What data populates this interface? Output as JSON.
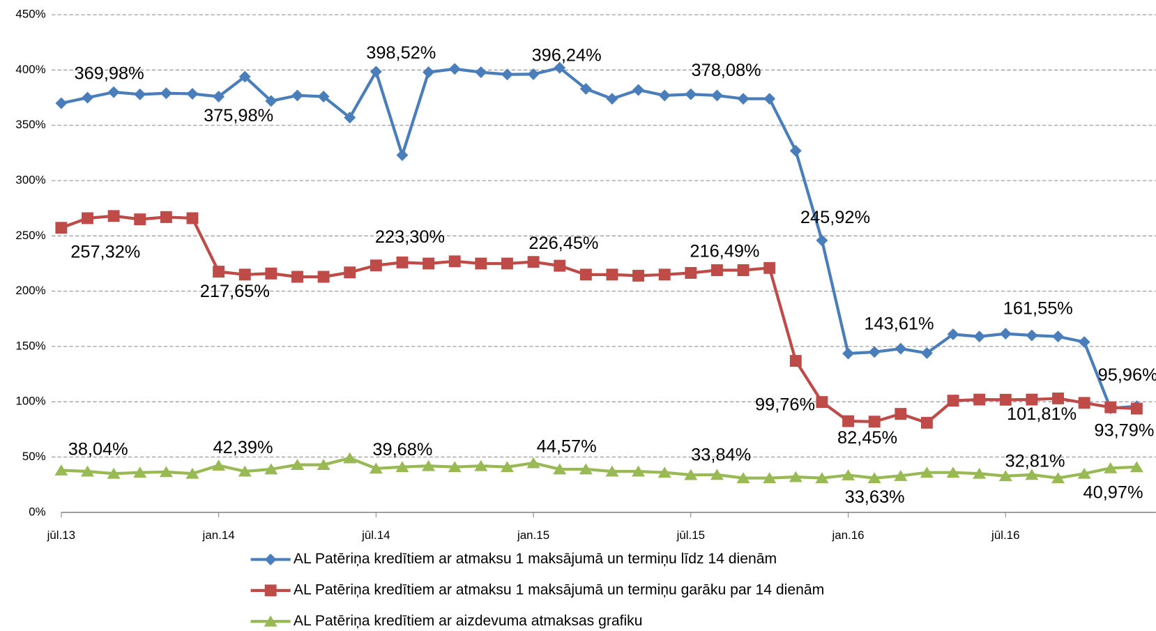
{
  "chart_data": {
    "type": "line",
    "categories": [
      "jūl.13",
      null,
      null,
      null,
      null,
      null,
      "jan.14",
      null,
      null,
      null,
      null,
      null,
      "jūl.14",
      null,
      null,
      null,
      null,
      null,
      "jan.15",
      null,
      null,
      null,
      null,
      null,
      "jūl.15",
      null,
      null,
      null,
      null,
      null,
      "jan.16",
      null,
      null,
      null,
      null,
      null,
      "jūl.16",
      null,
      null,
      null,
      null,
      null
    ],
    "ylim": [
      0,
      450
    ],
    "yticks": [
      {
        "value": 0,
        "label": "0%"
      },
      {
        "value": 50,
        "label": "50%"
      },
      {
        "value": 100,
        "label": "100%"
      },
      {
        "value": 150,
        "label": "150%"
      },
      {
        "value": 200,
        "label": "200%"
      },
      {
        "value": 250,
        "label": "250%"
      },
      {
        "value": 300,
        "label": "300%"
      },
      {
        "value": 350,
        "label": "350%"
      },
      {
        "value": 400,
        "label": "400%"
      },
      {
        "value": 450,
        "label": "450%"
      }
    ],
    "grid": true,
    "legend": "bottom",
    "series": [
      {
        "name": "AL Patēriņa kredītiem ar atmaksu 1 maksājumā un termiņu līdz 14 dienām",
        "color": "#4a7ebb",
        "marker": "diamond",
        "values": [
          369.98,
          375,
          380,
          378,
          379,
          378.5,
          375.98,
          394,
          372,
          377,
          376,
          357,
          398.52,
          323,
          398,
          401,
          398,
          396,
          396.24,
          402,
          383,
          374,
          382,
          377,
          378.08,
          377,
          374,
          374,
          327,
          245.92,
          143.61,
          145,
          148,
          144,
          161,
          159,
          161.55,
          160,
          159,
          154,
          94,
          95.96
        ],
        "value_labels": [
          "369,98%",
          null,
          null,
          null,
          null,
          null,
          "375,98%",
          null,
          null,
          null,
          null,
          null,
          "398,52%",
          null,
          null,
          null,
          null,
          null,
          "396,24%",
          null,
          null,
          null,
          null,
          null,
          "378,08%",
          null,
          null,
          null,
          null,
          "245,92%",
          "143,61%",
          null,
          null,
          null,
          null,
          null,
          "161,55%",
          null,
          null,
          null,
          null,
          "95,96%"
        ]
      },
      {
        "name": "AL Patēriņa kredītiem ar atmaksu 1 maksājumā un termiņu garāku par 14 dienām",
        "color": "#be4b48",
        "marker": "square",
        "values": [
          257.32,
          266,
          268,
          265,
          267,
          266,
          217.65,
          215,
          216,
          213,
          213,
          217,
          223.3,
          226,
          225,
          227,
          225,
          225,
          226.45,
          223,
          215,
          215,
          214,
          215,
          216.49,
          219,
          219,
          221,
          137,
          99.76,
          82.45,
          82,
          89,
          81,
          101,
          102,
          101.81,
          102,
          103,
          99,
          95,
          93.79
        ],
        "value_labels": [
          "257,32%",
          null,
          null,
          null,
          null,
          null,
          "217,65%",
          null,
          null,
          null,
          null,
          null,
          "223,30%",
          null,
          null,
          null,
          null,
          null,
          "226,45%",
          null,
          null,
          null,
          null,
          null,
          "216,49%",
          null,
          null,
          null,
          null,
          "99,76%",
          "82,45%",
          null,
          null,
          null,
          null,
          null,
          "101,81%",
          null,
          null,
          null,
          null,
          "93,79%"
        ]
      },
      {
        "name": "AL Patēriņa kredītiem ar aizdevuma atmaksas grafiku",
        "color": "#98b954",
        "marker": "triangle",
        "values": [
          38.04,
          37,
          35,
          36,
          36.5,
          35,
          42.39,
          37,
          39,
          43,
          43,
          49,
          39.68,
          41,
          42,
          41,
          42,
          41,
          44.57,
          39,
          39,
          37,
          37,
          36,
          33.84,
          34,
          31,
          31,
          32,
          31,
          33.63,
          31,
          33,
          36,
          36,
          35,
          32.81,
          34,
          31,
          35,
          40,
          40.97
        ],
        "value_labels": [
          "38,04%",
          null,
          null,
          null,
          null,
          null,
          "42,39%",
          null,
          null,
          null,
          null,
          null,
          "39,68%",
          null,
          null,
          null,
          null,
          null,
          "44,57%",
          null,
          null,
          null,
          null,
          null,
          "33,84%",
          null,
          null,
          null,
          null,
          null,
          "33,63%",
          null,
          null,
          null,
          null,
          null,
          "32,81%",
          null,
          null,
          null,
          null,
          "40,97%"
        ]
      }
    ]
  }
}
